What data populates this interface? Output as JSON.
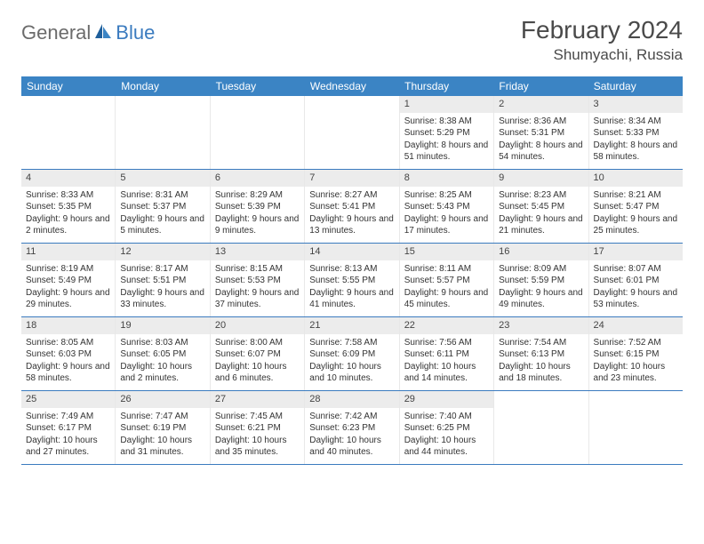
{
  "logo": {
    "word1": "General",
    "word2": "Blue"
  },
  "header": {
    "title": "February 2024",
    "location": "Shumyachi, Russia"
  },
  "colors": {
    "header_bg": "#3b84c4",
    "header_text": "#ffffff",
    "daynum_bg": "#ececec",
    "row_border": "#3b7bbf",
    "logo_gray": "#6b6b6b",
    "logo_blue": "#3b7bbf",
    "text": "#333333"
  },
  "weekdays": [
    "Sunday",
    "Monday",
    "Tuesday",
    "Wednesday",
    "Thursday",
    "Friday",
    "Saturday"
  ],
  "label": {
    "sunrise": "Sunrise: ",
    "sunset": "Sunset: ",
    "daylight": "Daylight: "
  },
  "weeks": [
    [
      {
        "empty": true
      },
      {
        "empty": true
      },
      {
        "empty": true
      },
      {
        "empty": true
      },
      {
        "day": "1",
        "sunrise": "8:38 AM",
        "sunset": "5:29 PM",
        "daylight": "8 hours and 51 minutes."
      },
      {
        "day": "2",
        "sunrise": "8:36 AM",
        "sunset": "5:31 PM",
        "daylight": "8 hours and 54 minutes."
      },
      {
        "day": "3",
        "sunrise": "8:34 AM",
        "sunset": "5:33 PM",
        "daylight": "8 hours and 58 minutes."
      }
    ],
    [
      {
        "day": "4",
        "sunrise": "8:33 AM",
        "sunset": "5:35 PM",
        "daylight": "9 hours and 2 minutes."
      },
      {
        "day": "5",
        "sunrise": "8:31 AM",
        "sunset": "5:37 PM",
        "daylight": "9 hours and 5 minutes."
      },
      {
        "day": "6",
        "sunrise": "8:29 AM",
        "sunset": "5:39 PM",
        "daylight": "9 hours and 9 minutes."
      },
      {
        "day": "7",
        "sunrise": "8:27 AM",
        "sunset": "5:41 PM",
        "daylight": "9 hours and 13 minutes."
      },
      {
        "day": "8",
        "sunrise": "8:25 AM",
        "sunset": "5:43 PM",
        "daylight": "9 hours and 17 minutes."
      },
      {
        "day": "9",
        "sunrise": "8:23 AM",
        "sunset": "5:45 PM",
        "daylight": "9 hours and 21 minutes."
      },
      {
        "day": "10",
        "sunrise": "8:21 AM",
        "sunset": "5:47 PM",
        "daylight": "9 hours and 25 minutes."
      }
    ],
    [
      {
        "day": "11",
        "sunrise": "8:19 AM",
        "sunset": "5:49 PM",
        "daylight": "9 hours and 29 minutes."
      },
      {
        "day": "12",
        "sunrise": "8:17 AM",
        "sunset": "5:51 PM",
        "daylight": "9 hours and 33 minutes."
      },
      {
        "day": "13",
        "sunrise": "8:15 AM",
        "sunset": "5:53 PM",
        "daylight": "9 hours and 37 minutes."
      },
      {
        "day": "14",
        "sunrise": "8:13 AM",
        "sunset": "5:55 PM",
        "daylight": "9 hours and 41 minutes."
      },
      {
        "day": "15",
        "sunrise": "8:11 AM",
        "sunset": "5:57 PM",
        "daylight": "9 hours and 45 minutes."
      },
      {
        "day": "16",
        "sunrise": "8:09 AM",
        "sunset": "5:59 PM",
        "daylight": "9 hours and 49 minutes."
      },
      {
        "day": "17",
        "sunrise": "8:07 AM",
        "sunset": "6:01 PM",
        "daylight": "9 hours and 53 minutes."
      }
    ],
    [
      {
        "day": "18",
        "sunrise": "8:05 AM",
        "sunset": "6:03 PM",
        "daylight": "9 hours and 58 minutes."
      },
      {
        "day": "19",
        "sunrise": "8:03 AM",
        "sunset": "6:05 PM",
        "daylight": "10 hours and 2 minutes."
      },
      {
        "day": "20",
        "sunrise": "8:00 AM",
        "sunset": "6:07 PM",
        "daylight": "10 hours and 6 minutes."
      },
      {
        "day": "21",
        "sunrise": "7:58 AM",
        "sunset": "6:09 PM",
        "daylight": "10 hours and 10 minutes."
      },
      {
        "day": "22",
        "sunrise": "7:56 AM",
        "sunset": "6:11 PM",
        "daylight": "10 hours and 14 minutes."
      },
      {
        "day": "23",
        "sunrise": "7:54 AM",
        "sunset": "6:13 PM",
        "daylight": "10 hours and 18 minutes."
      },
      {
        "day": "24",
        "sunrise": "7:52 AM",
        "sunset": "6:15 PM",
        "daylight": "10 hours and 23 minutes."
      }
    ],
    [
      {
        "day": "25",
        "sunrise": "7:49 AM",
        "sunset": "6:17 PM",
        "daylight": "10 hours and 27 minutes."
      },
      {
        "day": "26",
        "sunrise": "7:47 AM",
        "sunset": "6:19 PM",
        "daylight": "10 hours and 31 minutes."
      },
      {
        "day": "27",
        "sunrise": "7:45 AM",
        "sunset": "6:21 PM",
        "daylight": "10 hours and 35 minutes."
      },
      {
        "day": "28",
        "sunrise": "7:42 AM",
        "sunset": "6:23 PM",
        "daylight": "10 hours and 40 minutes."
      },
      {
        "day": "29",
        "sunrise": "7:40 AM",
        "sunset": "6:25 PM",
        "daylight": "10 hours and 44 minutes."
      },
      {
        "empty": true
      },
      {
        "empty": true
      }
    ]
  ]
}
